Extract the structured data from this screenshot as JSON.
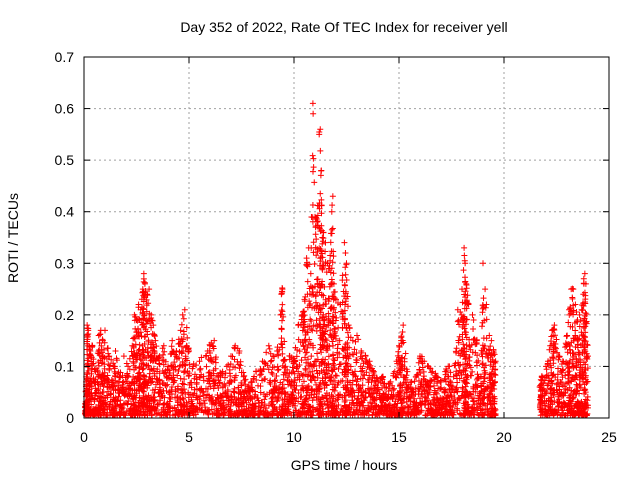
{
  "chart_data": {
    "type": "scatter",
    "title": "Day 352 of 2022, Rate Of TEC Index for receiver yell",
    "xlabel": "GPS time / hours",
    "ylabel": "ROTI / TECUs",
    "xlim": [
      0,
      25
    ],
    "ylim": [
      0,
      0.7
    ],
    "xticks": [
      "0",
      "5",
      "10",
      "15",
      "20",
      "25"
    ],
    "yticks": [
      "0",
      "0.1",
      "0.2",
      "0.3",
      "0.4",
      "0.5",
      "0.6",
      "0.7"
    ],
    "grid": true,
    "marker": "plus",
    "color": "#ff0000",
    "data_gap_hours": [
      19.7,
      21.6
    ],
    "series": [
      {
        "points": [
          [
            0.05,
            0.02
          ],
          [
            0.1,
            0.07
          ],
          [
            0.15,
            0.18
          ],
          [
            0.2,
            0.17
          ],
          [
            0.3,
            0.13
          ],
          [
            0.4,
            0.14
          ],
          [
            0.55,
            0.09
          ],
          [
            0.7,
            0.16
          ],
          [
            0.8,
            0.17
          ],
          [
            0.9,
            0.15
          ],
          [
            1.0,
            0.17
          ],
          [
            1.2,
            0.12
          ],
          [
            1.4,
            0.1
          ],
          [
            1.5,
            0.13
          ],
          [
            1.7,
            0.08
          ],
          [
            1.9,
            0.12
          ],
          [
            2.1,
            0.1
          ],
          [
            2.3,
            0.14
          ],
          [
            2.4,
            0.2
          ],
          [
            2.5,
            0.19
          ],
          [
            2.6,
            0.22
          ],
          [
            2.7,
            0.21
          ],
          [
            2.8,
            0.25
          ],
          [
            2.85,
            0.28
          ],
          [
            2.9,
            0.26
          ],
          [
            3.0,
            0.24
          ],
          [
            3.1,
            0.25
          ],
          [
            3.2,
            0.2
          ],
          [
            3.3,
            0.18
          ],
          [
            3.4,
            0.15
          ],
          [
            3.6,
            0.12
          ],
          [
            3.8,
            0.14
          ],
          [
            4.0,
            0.1
          ],
          [
            4.2,
            0.15
          ],
          [
            4.4,
            0.13
          ],
          [
            4.6,
            0.17
          ],
          [
            4.7,
            0.2
          ],
          [
            4.8,
            0.21
          ],
          [
            5.0,
            0.13
          ],
          [
            5.2,
            0.1
          ],
          [
            5.5,
            0.11
          ],
          [
            5.8,
            0.12
          ],
          [
            6.0,
            0.14
          ],
          [
            6.2,
            0.15
          ],
          [
            6.4,
            0.08
          ],
          [
            6.6,
            0.09
          ],
          [
            6.8,
            0.1
          ],
          [
            7.0,
            0.12
          ],
          [
            7.2,
            0.14
          ],
          [
            7.4,
            0.13
          ],
          [
            7.6,
            0.08
          ],
          [
            7.8,
            0.06
          ],
          [
            8.0,
            0.07
          ],
          [
            8.2,
            0.09
          ],
          [
            8.5,
            0.11
          ],
          [
            8.8,
            0.14
          ],
          [
            9.0,
            0.12
          ],
          [
            9.2,
            0.13
          ],
          [
            9.4,
            0.24
          ],
          [
            9.45,
            0.25
          ],
          [
            9.6,
            0.1
          ],
          [
            9.8,
            0.12
          ],
          [
            10.0,
            0.11
          ],
          [
            10.2,
            0.18
          ],
          [
            10.4,
            0.2
          ],
          [
            10.5,
            0.23
          ],
          [
            10.6,
            0.31
          ],
          [
            10.7,
            0.33
          ],
          [
            10.8,
            0.28
          ],
          [
            10.9,
            0.61
          ],
          [
            11.0,
            0.39
          ],
          [
            11.1,
            0.38
          ],
          [
            11.2,
            0.55
          ],
          [
            11.25,
            0.56
          ],
          [
            11.3,
            0.48
          ],
          [
            11.35,
            0.35
          ],
          [
            11.4,
            0.36
          ],
          [
            11.5,
            0.34
          ],
          [
            11.6,
            0.3
          ],
          [
            11.7,
            0.29
          ],
          [
            11.8,
            0.4
          ],
          [
            11.85,
            0.43
          ],
          [
            11.9,
            0.26
          ],
          [
            12.0,
            0.23
          ],
          [
            12.2,
            0.22
          ],
          [
            12.4,
            0.34
          ],
          [
            12.45,
            0.32
          ],
          [
            12.5,
            0.3
          ],
          [
            12.6,
            0.18
          ],
          [
            12.8,
            0.15
          ],
          [
            13.0,
            0.16
          ],
          [
            13.2,
            0.13
          ],
          [
            13.4,
            0.12
          ],
          [
            13.6,
            0.11
          ],
          [
            13.8,
            0.09
          ],
          [
            14.0,
            0.07
          ],
          [
            14.2,
            0.08
          ],
          [
            14.4,
            0.06
          ],
          [
            14.6,
            0.07
          ],
          [
            14.8,
            0.09
          ],
          [
            15.0,
            0.14
          ],
          [
            15.1,
            0.15
          ],
          [
            15.2,
            0.18
          ],
          [
            15.4,
            0.09
          ],
          [
            15.6,
            0.07
          ],
          [
            15.8,
            0.08
          ],
          [
            16.0,
            0.12
          ],
          [
            16.2,
            0.11
          ],
          [
            16.4,
            0.1
          ],
          [
            16.6,
            0.09
          ],
          [
            16.8,
            0.08
          ],
          [
            17.0,
            0.07
          ],
          [
            17.2,
            0.09
          ],
          [
            17.4,
            0.1
          ],
          [
            17.6,
            0.08
          ],
          [
            17.8,
            0.21
          ],
          [
            18.0,
            0.25
          ],
          [
            18.1,
            0.33
          ],
          [
            18.15,
            0.3
          ],
          [
            18.2,
            0.26
          ],
          [
            18.3,
            0.22
          ],
          [
            18.5,
            0.2
          ],
          [
            18.7,
            0.15
          ],
          [
            18.9,
            0.08
          ],
          [
            19.0,
            0.3
          ],
          [
            19.1,
            0.25
          ],
          [
            19.3,
            0.16
          ],
          [
            19.4,
            0.15
          ],
          [
            19.5,
            0.13
          ],
          [
            19.6,
            0.11
          ],
          [
            21.7,
            0.06
          ],
          [
            21.8,
            0.08
          ],
          [
            22.0,
            0.1
          ],
          [
            22.2,
            0.14
          ],
          [
            22.3,
            0.17
          ],
          [
            22.4,
            0.18
          ],
          [
            22.6,
            0.12
          ],
          [
            22.8,
            0.11
          ],
          [
            23.0,
            0.16
          ],
          [
            23.1,
            0.21
          ],
          [
            23.2,
            0.25
          ],
          [
            23.3,
            0.25
          ],
          [
            23.4,
            0.22
          ],
          [
            23.5,
            0.19
          ],
          [
            23.6,
            0.2
          ],
          [
            23.7,
            0.21
          ],
          [
            23.8,
            0.27
          ],
          [
            23.85,
            0.28
          ],
          [
            23.9,
            0.26
          ],
          [
            24.0,
            0.12
          ]
        ]
      }
    ]
  }
}
